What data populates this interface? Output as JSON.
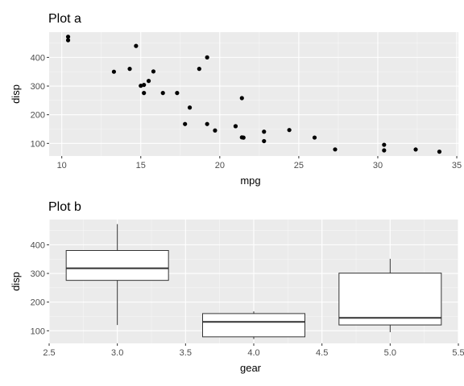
{
  "chart_data": [
    {
      "type": "scatter",
      "title": "Plot a",
      "xlabel": "mpg",
      "ylabel": "disp",
      "xlim": [
        9.2,
        35.1
      ],
      "ylim": [
        56,
        488
      ],
      "xticks": [
        10,
        15,
        20,
        25,
        30,
        35
      ],
      "yticks": [
        100,
        200,
        300,
        400
      ],
      "grid": true,
      "points": [
        {
          "x": 21.0,
          "y": 160
        },
        {
          "x": 21.0,
          "y": 160
        },
        {
          "x": 22.8,
          "y": 108
        },
        {
          "x": 21.4,
          "y": 258
        },
        {
          "x": 18.7,
          "y": 360
        },
        {
          "x": 18.1,
          "y": 225
        },
        {
          "x": 14.3,
          "y": 360
        },
        {
          "x": 24.4,
          "y": 146.7
        },
        {
          "x": 22.8,
          "y": 140.8
        },
        {
          "x": 19.2,
          "y": 167.6
        },
        {
          "x": 17.8,
          "y": 167.6
        },
        {
          "x": 16.4,
          "y": 275.8
        },
        {
          "x": 17.3,
          "y": 275.8
        },
        {
          "x": 15.2,
          "y": 275.8
        },
        {
          "x": 10.4,
          "y": 472
        },
        {
          "x": 10.4,
          "y": 460
        },
        {
          "x": 14.7,
          "y": 440
        },
        {
          "x": 32.4,
          "y": 78.7
        },
        {
          "x": 30.4,
          "y": 75.7
        },
        {
          "x": 33.9,
          "y": 71.1
        },
        {
          "x": 21.5,
          "y": 120.1
        },
        {
          "x": 15.5,
          "y": 318
        },
        {
          "x": 15.2,
          "y": 304
        },
        {
          "x": 13.3,
          "y": 350
        },
        {
          "x": 19.2,
          "y": 400
        },
        {
          "x": 27.3,
          "y": 79
        },
        {
          "x": 26.0,
          "y": 120.3
        },
        {
          "x": 30.4,
          "y": 95.1
        },
        {
          "x": 15.8,
          "y": 351
        },
        {
          "x": 19.7,
          "y": 145
        },
        {
          "x": 15.0,
          "y": 301
        },
        {
          "x": 21.4,
          "y": 121
        }
      ]
    },
    {
      "type": "box",
      "title": "Plot b",
      "xlabel": "gear",
      "ylabel": "disp",
      "xlim": [
        2.5,
        5.5
      ],
      "ylim": [
        56,
        488
      ],
      "xticks": [
        "2.5",
        "3.0",
        "3.5",
        "4.0",
        "4.5",
        "5.0",
        "5.5"
      ],
      "yticks": [
        100,
        200,
        300,
        400
      ],
      "grid": true,
      "boxes": [
        {
          "x": 3,
          "whisker_low": 120.1,
          "q1": 275.8,
          "median": 318,
          "q3": 380,
          "whisker_high": 472
        },
        {
          "x": 4,
          "whisker_low": 71.1,
          "q1": 78.85,
          "median": 130.9,
          "q3": 160,
          "whisker_high": 167.6
        },
        {
          "x": 5,
          "whisker_low": 95.1,
          "q1": 120.3,
          "median": 145,
          "q3": 301,
          "whisker_high": 351
        }
      ]
    }
  ]
}
